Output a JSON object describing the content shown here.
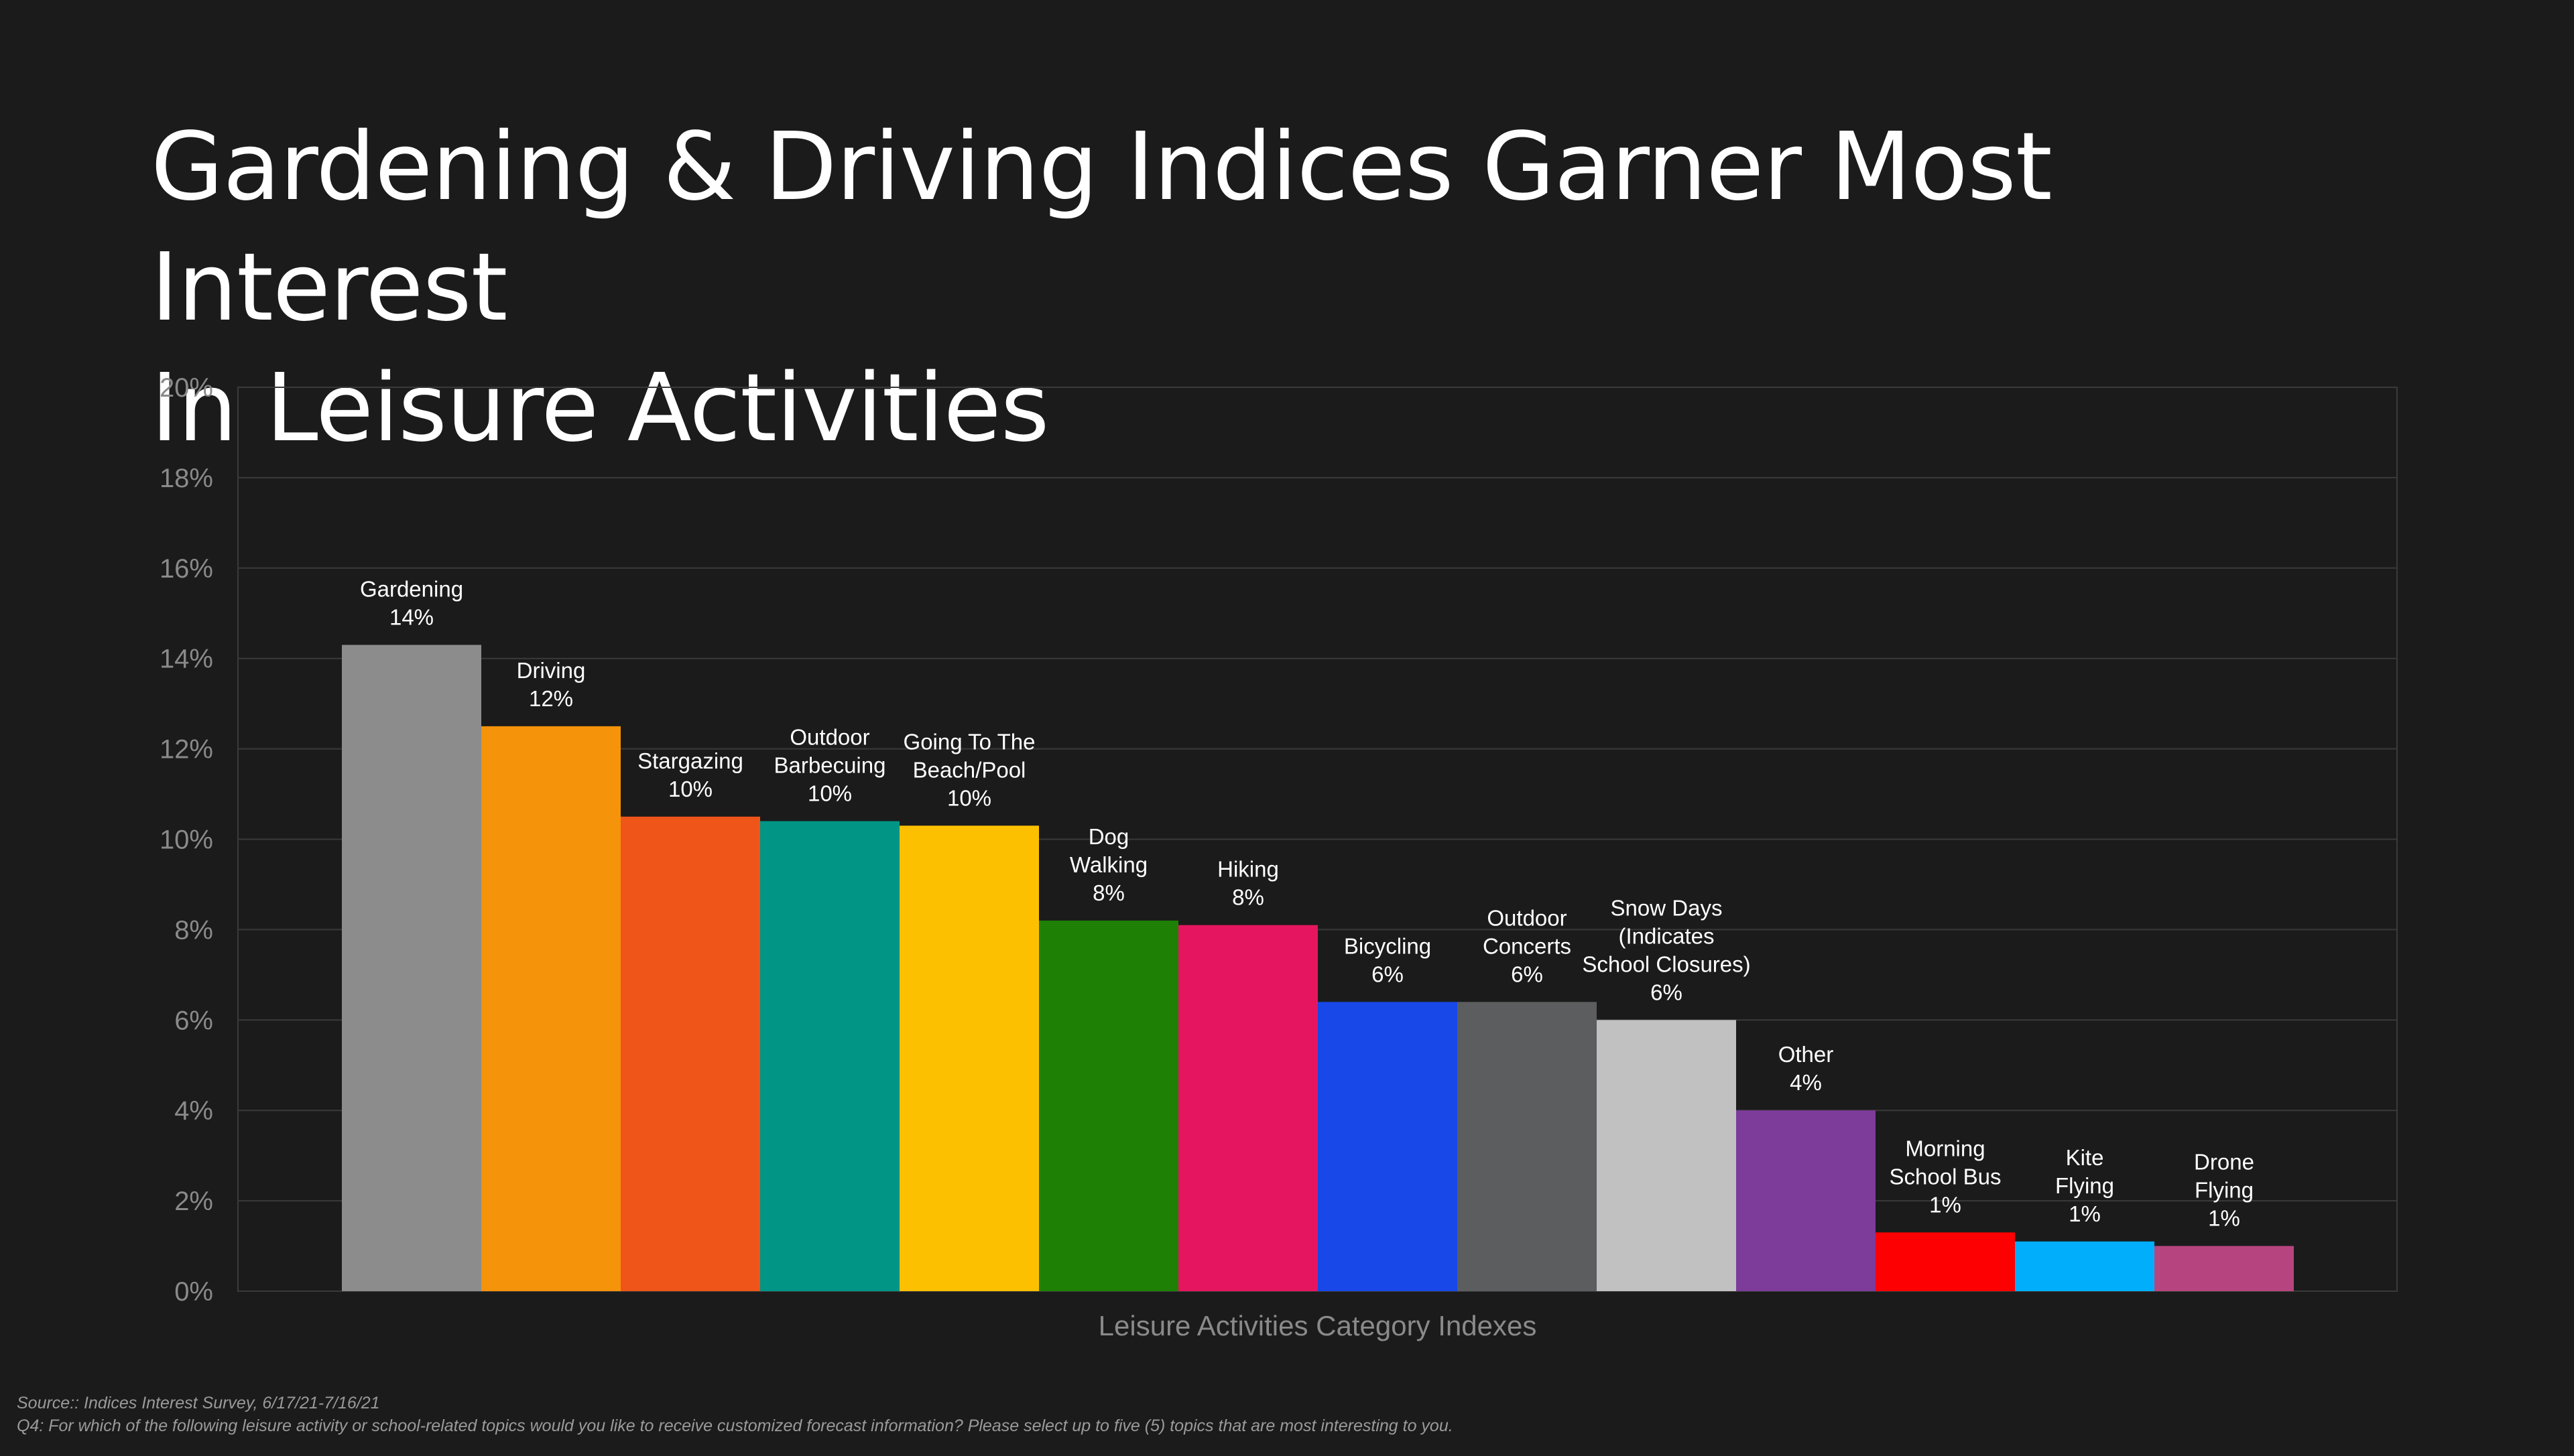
{
  "title_lines": [
    "Gardening & Driving Indices Garner Most Interest",
    "In Leisure Activities"
  ],
  "footnote": {
    "source": "Source:: Indices Interest Survey, 6/17/21-7/16/21",
    "question": "Q4: For which of the following leisure activity or school-related topics would you like to receive customized forecast information? Please select up to five (5) topics that are most interesting to you."
  },
  "chart_data": {
    "type": "bar",
    "title": "Gardening & Driving Indices Garner Most Interest In Leisure Activities",
    "xlabel": "Leisure Activities Category Indexes",
    "ylabel": "",
    "ylim": [
      0,
      20
    ],
    "yticks": [
      "0%",
      "2%",
      "4%",
      "6%",
      "8%",
      "10%",
      "12%",
      "14%",
      "16%",
      "18%",
      "20%"
    ],
    "grid": true,
    "bars": [
      {
        "label": [
          "Gardening"
        ],
        "value": 14.3,
        "display": "14%",
        "color": "#8c8c8c"
      },
      {
        "label": [
          "Driving"
        ],
        "value": 12.5,
        "display": "12%",
        "color": "#f5930a"
      },
      {
        "label": [
          "Stargazing"
        ],
        "value": 10.5,
        "display": "10%",
        "color": "#ef5519"
      },
      {
        "label": [
          "Outdoor",
          "Barbecuing"
        ],
        "value": 10.4,
        "display": "10%",
        "color": "#009585"
      },
      {
        "label": [
          "Going To The",
          "Beach/Pool"
        ],
        "value": 10.3,
        "display": "10%",
        "color": "#fdc000"
      },
      {
        "label": [
          "Dog",
          "Walking"
        ],
        "value": 8.2,
        "display": "8%",
        "color": "#1e8105"
      },
      {
        "label": [
          "Hiking"
        ],
        "value": 8.1,
        "display": "8%",
        "color": "#e5165f"
      },
      {
        "label": [
          "Bicycling"
        ],
        "value": 6.4,
        "display": "6%",
        "color": "#1848e8"
      },
      {
        "label": [
          "Outdoor",
          "Concerts"
        ],
        "value": 6.4,
        "display": "6%",
        "color": "#5c5d5f"
      },
      {
        "label": [
          "Snow Days",
          "(Indicates",
          "School Closures)"
        ],
        "value": 6.0,
        "display": "6%",
        "color": "#c1c1c1"
      },
      {
        "label": [
          "Other"
        ],
        "value": 4.0,
        "display": "4%",
        "color": "#7d3b9a"
      },
      {
        "label": [
          "Morning",
          "School Bus"
        ],
        "value": 1.3,
        "display": "1%",
        "color": "#fd0002"
      },
      {
        "label": [
          "Kite",
          "Flying"
        ],
        "value": 1.1,
        "display": "1%",
        "color": "#00aefb"
      },
      {
        "label": [
          "Drone",
          "Flying"
        ],
        "value": 1.0,
        "display": "1%",
        "color": "#b6457f"
      }
    ],
    "colors": {
      "background": "#1b1b1b",
      "gridline": "#3a3a3a",
      "axis_text": "#8a8a8a",
      "label_text": "#ffffff"
    }
  }
}
